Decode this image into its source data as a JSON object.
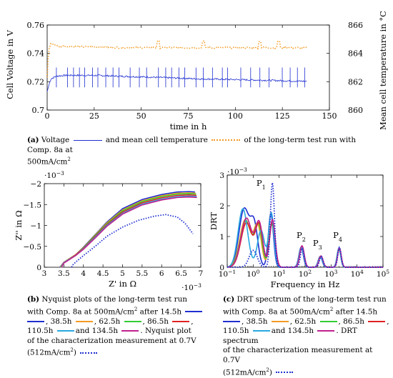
{
  "chart_data": [
    {
      "id": "a",
      "type": "line",
      "xlabel": "time in h",
      "ylabel": "Cell Voltage in V",
      "y2label": "Mean cell temperature in °C",
      "xlim": [
        0,
        150
      ],
      "ylim": [
        0.7,
        0.76
      ],
      "y2lim": [
        860,
        866
      ],
      "xticks": [
        "0",
        "25",
        "50",
        "75",
        "100",
        "125",
        "150"
      ],
      "yticks": [
        "0.7",
        "0.72",
        "0.74",
        "0.76"
      ],
      "y2ticks": [
        "860",
        "862",
        "864",
        "866"
      ],
      "series": [
        {
          "color": "#1f2fd0",
          "style": "solid",
          "axis": "left",
          "x": [
            0,
            1,
            2,
            5,
            10,
            20,
            30,
            40,
            50,
            60,
            70,
            80,
            90,
            100,
            110,
            120,
            130,
            138
          ],
          "y": [
            0.713,
            0.718,
            0.722,
            0.724,
            0.7245,
            0.7245,
            0.7243,
            0.7238,
            0.7234,
            0.723,
            0.7225,
            0.722,
            0.7218,
            0.7215,
            0.7212,
            0.7209,
            0.7205,
            0.7203
          ],
          "spikes_x": [
            5,
            11,
            14,
            17,
            20,
            24,
            27,
            31,
            35,
            38,
            44,
            49,
            53,
            59,
            63,
            66,
            70,
            73,
            79,
            83,
            88,
            93,
            96,
            103,
            108,
            113,
            118,
            125,
            129,
            133,
            137
          ],
          "spike_top": 0.73,
          "spike_bottom": 0.716
        },
        {
          "color": "#f39a22",
          "style": "dotted",
          "axis": "right",
          "x": [
            0,
            0.5,
            1,
            2,
            4,
            6,
            10,
            20,
            30,
            40,
            50,
            60,
            70,
            80,
            90,
            100,
            110,
            120,
            130,
            138
          ],
          "y": [
            862.3,
            863.6,
            864.3,
            864.7,
            864.6,
            864.5,
            864.5,
            864.45,
            864.45,
            864.4,
            864.4,
            864.4,
            864.4,
            864.4,
            864.4,
            864.4,
            864.4,
            864.4,
            864.4,
            864.4
          ],
          "bumps_x": [
            59,
            83,
            113,
            123
          ]
        }
      ]
    },
    {
      "id": "b",
      "type": "line",
      "xlabel": "Z' in Ω",
      "ylabel": "Z'' in Ω",
      "xmult": "·10",
      "xexp": "−3",
      "ymult": "·10",
      "yexp": "−3",
      "xlim": [
        3,
        7
      ],
      "ylim": [
        0,
        -2
      ],
      "xticks": [
        "3",
        "3.5",
        "4",
        "4.5",
        "5",
        "5.5",
        "6",
        "6.5",
        "7"
      ],
      "yticks": [
        "0",
        "−0.5",
        "−1",
        "−1.5",
        "−2"
      ],
      "series": [
        {
          "color": "#1f2fd0",
          "x": [
            3.4,
            3.5,
            3.6,
            3.8,
            4.0,
            4.3,
            4.6,
            5.0,
            5.5,
            6.0,
            6.4,
            6.7,
            6.85
          ],
          "y": [
            0,
            -0.12,
            -0.18,
            -0.3,
            -0.48,
            -0.78,
            -1.08,
            -1.4,
            -1.62,
            -1.74,
            -1.8,
            -1.81,
            -1.8
          ]
        },
        {
          "color": "#f39a22",
          "x": [
            3.41,
            3.5,
            3.6,
            3.8,
            4.0,
            4.3,
            4.6,
            5.0,
            5.5,
            6.0,
            6.4,
            6.7,
            6.87
          ],
          "y": [
            0,
            -0.12,
            -0.18,
            -0.3,
            -0.47,
            -0.77,
            -1.06,
            -1.37,
            -1.59,
            -1.71,
            -1.77,
            -1.78,
            -1.77
          ]
        },
        {
          "color": "#33cc33",
          "x": [
            3.42,
            3.5,
            3.6,
            3.8,
            4.0,
            4.3,
            4.6,
            5.0,
            5.5,
            6.0,
            6.4,
            6.7,
            6.88
          ],
          "y": [
            0,
            -0.11,
            -0.17,
            -0.29,
            -0.46,
            -0.76,
            -1.04,
            -1.35,
            -1.57,
            -1.69,
            -1.75,
            -1.76,
            -1.75
          ]
        },
        {
          "color": "#e02020",
          "x": [
            3.43,
            3.5,
            3.6,
            3.8,
            4.0,
            4.3,
            4.6,
            5.0,
            5.5,
            6.0,
            6.4,
            6.7,
            6.89
          ],
          "y": [
            0,
            -0.11,
            -0.17,
            -0.29,
            -0.45,
            -0.74,
            -1.02,
            -1.32,
            -1.54,
            -1.66,
            -1.72,
            -1.73,
            -1.72
          ]
        },
        {
          "color": "#2aa8e0",
          "x": [
            3.43,
            3.5,
            3.6,
            3.8,
            4.0,
            4.3,
            4.6,
            5.0,
            5.5,
            6.0,
            6.4,
            6.7,
            6.9
          ],
          "y": [
            0,
            -0.11,
            -0.17,
            -0.28,
            -0.44,
            -0.72,
            -1.0,
            -1.29,
            -1.51,
            -1.63,
            -1.69,
            -1.7,
            -1.69
          ]
        },
        {
          "color": "#c0208f",
          "x": [
            3.44,
            3.5,
            3.6,
            3.8,
            4.0,
            4.3,
            4.6,
            5.0,
            5.5,
            6.0,
            6.4,
            6.7,
            6.9
          ],
          "y": [
            0,
            -0.1,
            -0.16,
            -0.28,
            -0.43,
            -0.7,
            -0.98,
            -1.27,
            -1.49,
            -1.61,
            -1.67,
            -1.68,
            -1.67
          ]
        },
        {
          "color": "#1f2fd0",
          "style": "dotted",
          "x": [
            3.7,
            3.72,
            3.8,
            4.0,
            4.3,
            4.6,
            5.0,
            5.4,
            5.8,
            6.1,
            6.4,
            6.6,
            6.8
          ],
          "y": [
            0,
            -0.05,
            -0.12,
            -0.28,
            -0.5,
            -0.74,
            -0.96,
            -1.12,
            -1.22,
            -1.26,
            -1.2,
            -1.05,
            -0.8
          ]
        }
      ]
    },
    {
      "id": "c",
      "type": "line",
      "xlabel": "Frequency in Hz",
      "ylabel": "DRT",
      "ymult": "·10",
      "yexp": "−3",
      "xscale": "log",
      "xlim": [
        0.1,
        100000
      ],
      "ylim": [
        0,
        3
      ],
      "xticks": [
        "10",
        "10",
        "10",
        "10",
        "10",
        "10",
        "10"
      ],
      "xtick_exp": [
        "−1",
        "0",
        "1",
        "2",
        "3",
        "4",
        "5"
      ],
      "yticks": [
        "0",
        "1",
        "2",
        "3"
      ],
      "annotations": [
        {
          "text": "P",
          "sub": "1",
          "x": 2.0,
          "y": 2.65
        },
        {
          "text": "P",
          "sub": "2",
          "x": 70,
          "y": 0.95
        },
        {
          "text": "P",
          "sub": "3",
          "x": 300,
          "y": 0.7
        },
        {
          "text": "P",
          "sub": "4",
          "x": 1800,
          "y": 0.95
        }
      ],
      "series": [
        {
          "color": "#1f2fd0",
          "peaks": [
            [
              0.45,
              1.9,
              0.28
            ],
            [
              1.1,
              1.3,
              0.2
            ],
            [
              4.8,
              1.75,
              0.14
            ],
            [
              70,
              0.65,
              0.12
            ],
            [
              380,
              0.35,
              0.11
            ],
            [
              2000,
              0.62,
              0.1
            ]
          ]
        },
        {
          "color": "#f39a22",
          "peaks": [
            [
              0.5,
              1.55,
              0.3
            ],
            [
              1.5,
              1.3,
              0.2
            ],
            [
              5.2,
              1.45,
              0.15
            ],
            [
              72,
              0.66,
              0.12
            ],
            [
              390,
              0.35,
              0.11
            ],
            [
              2000,
              0.6,
              0.1
            ]
          ]
        },
        {
          "color": "#33cc33",
          "peaks": [
            [
              0.52,
              1.5,
              0.3
            ],
            [
              1.6,
              1.35,
              0.2
            ],
            [
              5.3,
              1.4,
              0.15
            ],
            [
              74,
              0.68,
              0.12
            ],
            [
              400,
              0.36,
              0.11
            ],
            [
              2050,
              0.6,
              0.1
            ]
          ]
        },
        {
          "color": "#e02020",
          "peaks": [
            [
              0.55,
              1.45,
              0.3
            ],
            [
              1.7,
              1.35,
              0.2
            ],
            [
              5.4,
              1.45,
              0.15
            ],
            [
              75,
              0.68,
              0.12
            ],
            [
              400,
              0.36,
              0.11
            ],
            [
              2050,
              0.6,
              0.1
            ]
          ]
        },
        {
          "color": "#2aa8e0",
          "peaks": [
            [
              0.4,
              1.9,
              0.26
            ],
            [
              2.0,
              1.2,
              0.2
            ],
            [
              5.0,
              1.75,
              0.14
            ],
            [
              72,
              0.66,
              0.12
            ],
            [
              390,
              0.34,
              0.11
            ],
            [
              2000,
              0.6,
              0.1
            ]
          ]
        },
        {
          "color": "#c0208f",
          "peaks": [
            [
              0.55,
              1.6,
              0.3
            ],
            [
              1.7,
              1.4,
              0.2
            ],
            [
              5.5,
              1.55,
              0.15
            ],
            [
              76,
              0.7,
              0.12
            ],
            [
              410,
              0.37,
              0.11
            ],
            [
              2100,
              0.62,
              0.1
            ]
          ]
        },
        {
          "color": "#1f2fd0",
          "style": "dotted",
          "peaks": [
            [
              1.0,
              0.55,
              0.22
            ],
            [
              5.5,
              2.75,
              0.11
            ],
            [
              78,
              0.62,
              0.1
            ],
            [
              420,
              0.35,
              0.1
            ],
            [
              2100,
              0.65,
              0.09
            ]
          ]
        }
      ]
    }
  ],
  "captions": {
    "a": {
      "label": "(a)",
      "t1": "Voltage",
      "t2": "and mean cell temperature",
      "t3": "of the long-term test run with Comp. 8a at",
      "t4": "500mA/cm",
      "t4sup": "2"
    },
    "b": {
      "label": "(b)",
      "l1": "Nyquist plots of the long-term test run",
      "l2a": "with Comp. 8a at 500mA/cm",
      "l2sup": "2",
      "l2b": " after 14.5h",
      "l3": [
        ", 38.5h",
        ", 62.5h",
        ", 86.5h",
        ","
      ],
      "l4a": "110.5h",
      "l4b": "and 134.5h",
      "l4c": ". Nyquist plot",
      "l5": "of the characterization measurement at 0.7V",
      "l6a": "(512mA/cm",
      "l6sup": "2",
      "l6b": ")"
    },
    "c": {
      "label": "(c)",
      "l1": "DRT spectrum of the long-term test run",
      "l2a": "with Comp. 8a at 500mA/cm",
      "l2sup": "2",
      "l2b": " after 14.5h",
      "l3": [
        ", 38.5h",
        ", 62.5h",
        ", 86.5h",
        ","
      ],
      "l4a": "110.5h",
      "l4b": "and 134.5h",
      "l4c": ". DRT spectrum",
      "l5": "of the characterization measurement at 0.7V",
      "l6a": "(512mA/cm",
      "l6sup": "2",
      "l6b": ")"
    }
  }
}
